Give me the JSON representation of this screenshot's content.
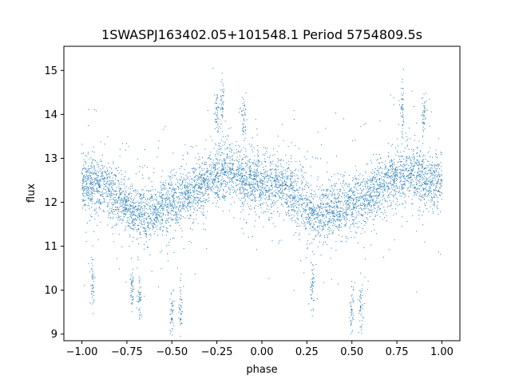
{
  "chart_data": {
    "type": "scatter",
    "title": "1SWASPJ163402.05+101548.1 Period 5754809.5s",
    "xlabel": "phase",
    "ylabel": "flux",
    "xlim": [
      -1.1,
      1.1
    ],
    "ylim": [
      8.85,
      15.55
    ],
    "xticks": [
      -1.0,
      -0.75,
      -0.5,
      -0.25,
      0.0,
      0.25,
      0.5,
      0.75,
      1.0
    ],
    "xtick_labels": [
      "−1.00",
      "−0.75",
      "−0.50",
      "−0.25",
      "0.00",
      "0.25",
      "0.50",
      "0.75",
      "1.00"
    ],
    "yticks": [
      9,
      10,
      11,
      12,
      13,
      14,
      15
    ],
    "ytick_labels": [
      "9",
      "10",
      "11",
      "12",
      "13",
      "14",
      "15"
    ],
    "grid": false,
    "marker_color": "#1f77b4",
    "series": [
      {
        "trend_phase": [
          0.0,
          0.12,
          0.2,
          0.3,
          0.4,
          0.5,
          0.6,
          0.7,
          0.75,
          0.8,
          0.9,
          1.0
        ],
        "trend_flux": [
          12.45,
          12.35,
          12.1,
          11.75,
          11.8,
          11.95,
          12.15,
          12.45,
          12.6,
          12.7,
          12.5,
          12.45
        ],
        "outlier_clusters": [
          {
            "phase": -0.94,
            "flux": 10.2
          },
          {
            "phase": -0.72,
            "flux": 10.0
          },
          {
            "phase": -0.68,
            "flux": 9.9
          },
          {
            "phase": -0.5,
            "flux": 9.5
          },
          {
            "phase": -0.45,
            "flux": 9.6
          },
          {
            "phase": -0.25,
            "flux": 14.0
          },
          {
            "phase": -0.22,
            "flux": 14.2
          },
          {
            "phase": -0.1,
            "flux": 13.9
          },
          {
            "phase": 0.28,
            "flux": 10.1
          },
          {
            "phase": 0.5,
            "flux": 9.5
          },
          {
            "phase": 0.55,
            "flux": 9.6
          },
          {
            "phase": 0.78,
            "flux": 14.1
          },
          {
            "phase": 0.9,
            "flux": 13.9
          }
        ]
      }
    ]
  }
}
